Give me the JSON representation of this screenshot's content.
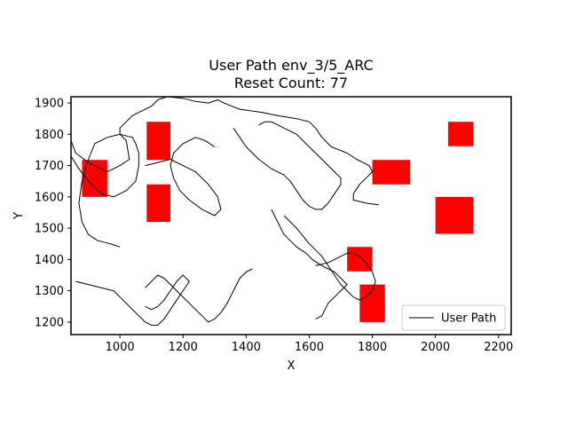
{
  "chart_data": {
    "type": "line",
    "title": "User Path env_3/5_ARC",
    "subtitle": "Reset Count: 77",
    "xlabel": "X",
    "ylabel": "Y",
    "xlim": [
      845,
      2240
    ],
    "ylim": [
      1160,
      1920
    ],
    "xticks": [
      1000,
      1200,
      1400,
      1600,
      1800,
      2000,
      2200
    ],
    "yticks": [
      1200,
      1300,
      1400,
      1500,
      1600,
      1700,
      1800,
      1900
    ],
    "grid": false,
    "legend": {
      "placement": "lower-right",
      "entries": [
        "User Path"
      ]
    },
    "obstacle_color": "#ff0000",
    "path_color": "#000000",
    "obstacles": [
      {
        "x": [
          2040,
          2120
        ],
        "y": [
          1762,
          1840
        ]
      },
      {
        "x": [
          880,
          960
        ],
        "y": [
          1600,
          1718
        ]
      },
      {
        "x": [
          1085,
          1160
        ],
        "y": [
          1718,
          1840
        ]
      },
      {
        "x": [
          1085,
          1160
        ],
        "y": [
          1520,
          1640
        ]
      },
      {
        "x": [
          1800,
          1920
        ],
        "y": [
          1640,
          1718
        ]
      },
      {
        "x": [
          2000,
          2120
        ],
        "y": [
          1482,
          1600
        ]
      },
      {
        "x": [
          1720,
          1800
        ],
        "y": [
          1362,
          1440
        ]
      },
      {
        "x": [
          1760,
          1840
        ],
        "y": [
          1200,
          1320
        ]
      }
    ],
    "series": [
      {
        "name": "User Path",
        "segments": [
          {
            "x": [
              845,
              860,
              900,
              960,
              1000,
              1030,
              1020,
              1000,
              1000,
              1040,
              1080,
              1100,
              1120,
              1150,
              1200,
              1240,
              1280,
              1310,
              1330,
              1380,
              1450,
              1500,
              1560,
              1600,
              1620,
              1640,
              1670,
              1720,
              1750,
              1790,
              1800,
              1780,
              1760,
              1740,
              1740,
              1780,
              1820
            ],
            "y": [
              1780,
              1740,
              1710,
              1680,
              1700,
              1720,
              1780,
              1800,
              1820,
              1860,
              1880,
              1890,
              1910,
              1920,
              1915,
              1905,
              1900,
              1910,
              1900,
              1880,
              1870,
              1860,
              1850,
              1840,
              1820,
              1790,
              1760,
              1740,
              1720,
              1700,
              1680,
              1660,
              1640,
              1610,
              1590,
              1580,
              1575
            ]
          },
          {
            "x": [
              845,
              870,
              900,
              940,
              980,
              1020,
              1050,
              1060,
              1060,
              1050,
              1040,
              1000,
              960,
              920,
              900,
              880,
              870,
              880,
              900,
              930,
              970,
              1000
            ],
            "y": [
              1730,
              1690,
              1650,
              1610,
              1600,
              1620,
              1650,
              1700,
              1740,
              1770,
              1790,
              1800,
              1790,
              1770,
              1720,
              1650,
              1580,
              1520,
              1480,
              1460,
              1450,
              1440
            ]
          },
          {
            "x": [
              1080,
              1120,
              1160,
              1200,
              1240,
              1280,
              1310,
              1320,
              1300,
              1260,
              1220,
              1190,
              1170,
              1160,
              1170,
              1200,
              1240,
              1270,
              1300
            ],
            "y": [
              1700,
              1710,
              1720,
              1700,
              1680,
              1640,
              1600,
              1560,
              1540,
              1560,
              1590,
              1620,
              1660,
              1700,
              1740,
              1770,
              1790,
              1780,
              1760
            ]
          },
          {
            "x": [
              1360,
              1400,
              1440,
              1480,
              1520,
              1540,
              1560,
              1580,
              1600,
              1620,
              1640,
              1660,
              1680,
              1700,
              1700,
              1680,
              1660,
              1640,
              1620,
              1600,
              1580,
              1560,
              1540,
              1520,
              1500,
              1480,
              1460,
              1440
            ],
            "y": [
              1820,
              1760,
              1720,
              1690,
              1670,
              1650,
              1620,
              1590,
              1570,
              1560,
              1560,
              1580,
              1610,
              1640,
              1660,
              1680,
              1700,
              1720,
              1740,
              1760,
              1780,
              1800,
              1810,
              1820,
              1830,
              1840,
              1840,
              1830
            ]
          },
          {
            "x": [
              1520,
              1560,
              1600,
              1640,
              1660,
              1680,
              1700,
              1720,
              1740,
              1760,
              1780,
              1800,
              1810,
              1800,
              1780,
              1760,
              1740,
              1720,
              1700,
              1680,
              1660,
              1640,
              1620
            ],
            "y": [
              1540,
              1500,
              1450,
              1410,
              1380,
              1350,
              1320,
              1300,
              1280,
              1270,
              1280,
              1300,
              1330,
              1360,
              1390,
              1410,
              1420,
              1420,
              1410,
              1400,
              1390,
              1385,
              1380
            ]
          },
          {
            "x": [
              1480,
              1500,
              1520,
              1560,
              1590,
              1610,
              1640,
              1680,
              1700,
              1720,
              1700,
              1680,
              1660,
              1650,
              1640,
              1620
            ],
            "y": [
              1560,
              1520,
              1480,
              1440,
              1420,
              1400,
              1380,
              1360,
              1340,
              1320,
              1300,
              1280,
              1260,
              1240,
              1220,
              1210
            ]
          },
          {
            "x": [
              860,
              900,
              940,
              980,
              1000,
              1020,
              1040,
              1060,
              1080,
              1100,
              1120,
              1140,
              1160,
              1180,
              1200,
              1220,
              1200,
              1180,
              1160,
              1140,
              1120,
              1100,
              1080
            ],
            "y": [
              1330,
              1320,
              1310,
              1300,
              1280,
              1260,
              1240,
              1220,
              1200,
              1190,
              1190,
              1210,
              1240,
              1270,
              1300,
              1330,
              1350,
              1330,
              1300,
              1270,
              1250,
              1240,
              1250
            ]
          },
          {
            "x": [
              1080,
              1100,
              1120,
              1140,
              1160,
              1180,
              1200,
              1220,
              1240,
              1260,
              1280,
              1300,
              1320,
              1340,
              1360,
              1380,
              1400,
              1420
            ],
            "y": [
              1310,
              1330,
              1350,
              1340,
              1320,
              1300,
              1280,
              1260,
              1240,
              1220,
              1200,
              1210,
              1230,
              1260,
              1300,
              1340,
              1360,
              1370
            ]
          }
        ]
      }
    ]
  }
}
